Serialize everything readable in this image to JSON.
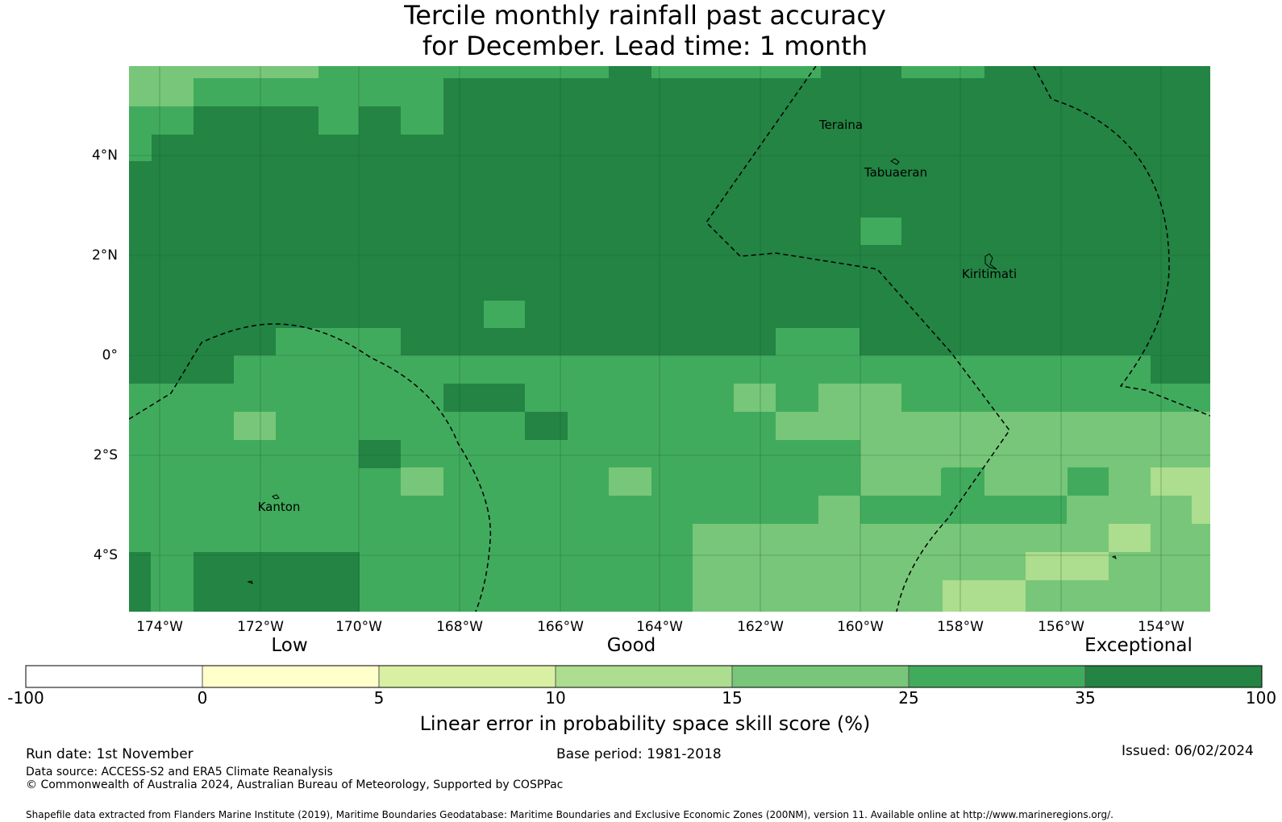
{
  "title": {
    "line1": "Tercile monthly rainfall past accuracy",
    "line2": "for December. Lead time: 1 month"
  },
  "map": {
    "longitude_ticks": [
      "174°W",
      "172°W",
      "170°W",
      "168°W",
      "166°W",
      "164°W",
      "162°W",
      "160°W",
      "158°W",
      "156°W",
      "154°W"
    ],
    "latitude_ticks": [
      "4°N",
      "2°N",
      "0°",
      "2°S",
      "4°S"
    ],
    "place_labels": [
      "Teraina",
      "Tabuaeran",
      "Kiritimati",
      "Kanton"
    ]
  },
  "legend": {
    "categories": [
      "Low",
      "Good",
      "Exceptional"
    ],
    "tick_labels": [
      "-100",
      "0",
      "5",
      "10",
      "15",
      "25",
      "35",
      "100"
    ],
    "colors": [
      "#ffffff",
      "#ffffcc",
      "#d9f0a3",
      "#addd8e",
      "#78c679",
      "#41ab5d",
      "#238443"
    ],
    "label": "Linear error in probability space skill score (%)"
  },
  "footer": {
    "run_date": "Run date: 1st November",
    "base_period": "Base period: 1981-2018",
    "issued": "Issued: 06/02/2024",
    "data_source": "Data source: ACCESS-S2 and ERA5 Climate Reanalysis",
    "copyright": "© Commonwealth of Australia 2024, Australian Bureau of Meteorology, Supported by COSPPac",
    "shapefile": "Shapefile data extracted from Flanders Marine Institute (2019), Maritime Boundaries Geodatabase: Maritime Boundaries and Exclusive Economic Zones (200NM), version 11. Available online at http://www.marineregions.org/."
  }
}
